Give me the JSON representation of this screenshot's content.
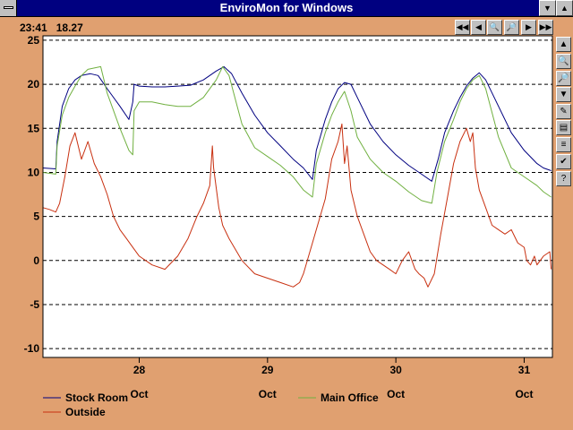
{
  "window": {
    "title": "EnviroMon for Windows",
    "minimize_icon": "down-arrow-icon",
    "maximize_icon": "up-arrow-icon"
  },
  "status": {
    "time": "23:41",
    "value": "18.27"
  },
  "nav_buttons": [
    {
      "name": "rewind-fast-button",
      "icon": "double-left-arrow-icon",
      "glyph": "◀◀"
    },
    {
      "name": "step-back-button",
      "icon": "left-arrow-icon",
      "glyph": "◀"
    },
    {
      "name": "zoom-in-button",
      "icon": "zoom-in-icon",
      "glyph": "🔍"
    },
    {
      "name": "zoom-out-button",
      "icon": "zoom-out-icon",
      "glyph": "🔎"
    },
    {
      "name": "step-forward-button",
      "icon": "right-arrow-icon",
      "glyph": "▶"
    },
    {
      "name": "forward-fast-button",
      "icon": "double-right-arrow-icon",
      "glyph": "▶▶"
    }
  ],
  "side_buttons": [
    {
      "name": "scroll-up-button",
      "icon": "up-arrow-icon",
      "glyph": "▲"
    },
    {
      "name": "zoom-in-vertical-button",
      "icon": "zoom-in-icon",
      "glyph": "🔍"
    },
    {
      "name": "zoom-out-vertical-button",
      "icon": "zoom-out-icon",
      "glyph": "🔎"
    },
    {
      "name": "scroll-down-button",
      "icon": "down-arrow-icon",
      "glyph": "▼"
    },
    {
      "name": "notes-button",
      "icon": "notes-icon",
      "glyph": "✎"
    },
    {
      "name": "save-button",
      "icon": "disk-icon",
      "glyph": "▤"
    },
    {
      "name": "channels-button",
      "icon": "color-bars-icon",
      "glyph": "≡"
    },
    {
      "name": "check-button",
      "icon": "check-icon",
      "glyph": "✔"
    },
    {
      "name": "help-button",
      "icon": "help-icon",
      "glyph": "?"
    }
  ],
  "colors": {
    "background": "#E0A070",
    "plot": "#FFFFFF",
    "stock_room": "#000080",
    "main_office": "#70B040",
    "outside": "#C83010"
  },
  "chart_data": {
    "type": "line",
    "ylim": [
      -11,
      25.5
    ],
    "xlim": [
      27.25,
      31.22
    ],
    "yticks": [
      "25",
      "20",
      "15",
      "10",
      "5",
      "0",
      "-5",
      "-10"
    ],
    "ytick_values": [
      25,
      20,
      15,
      10,
      5,
      0,
      -5,
      -10
    ],
    "xticks": [
      {
        "value": 28,
        "day": "28",
        "month": "Oct"
      },
      {
        "value": 29,
        "day": "29",
        "month": "Oct"
      },
      {
        "value": 30,
        "day": "30",
        "month": "Oct"
      },
      {
        "value": 31,
        "day": "31",
        "month": "Oct"
      }
    ],
    "grid": "horizontal-dashed",
    "legend_position": "bottom-left",
    "series": [
      {
        "name": "Stock Room",
        "color": "#000080",
        "x": [
          27.25,
          27.35,
          27.36,
          27.4,
          27.45,
          27.5,
          27.55,
          27.62,
          27.68,
          27.75,
          27.85,
          27.92,
          27.95,
          27.96,
          28.0,
          28.1,
          28.2,
          28.3,
          28.4,
          28.5,
          28.6,
          28.66,
          28.72,
          28.8,
          28.9,
          29.0,
          29.1,
          29.2,
          29.28,
          29.35,
          29.38,
          29.45,
          29.5,
          29.55,
          29.6,
          29.65,
          29.7,
          29.8,
          29.9,
          30.0,
          30.1,
          30.2,
          30.28,
          30.33,
          30.38,
          30.45,
          30.5,
          30.55,
          30.6,
          30.65,
          30.7,
          30.8,
          30.9,
          31.0,
          31.1,
          31.15,
          31.21
        ],
        "y": [
          10.5,
          10.4,
          13.5,
          17.5,
          19.5,
          20.5,
          21.0,
          21.2,
          21.0,
          19.5,
          17.5,
          16.0,
          18.0,
          20.0,
          19.8,
          19.7,
          19.7,
          19.8,
          19.9,
          20.5,
          21.5,
          22.0,
          21.2,
          19.0,
          16.5,
          14.5,
          13.0,
          11.5,
          10.5,
          9.2,
          12.5,
          16.0,
          18.0,
          19.5,
          20.2,
          20.0,
          18.5,
          15.5,
          13.5,
          12.0,
          10.8,
          9.8,
          9.0,
          11.5,
          14.5,
          17.0,
          18.5,
          19.8,
          20.7,
          21.3,
          20.5,
          17.5,
          14.5,
          12.5,
          11.0,
          10.5,
          10.2
        ]
      },
      {
        "name": "Main Office",
        "color": "#70B040",
        "x": [
          27.25,
          27.35,
          27.36,
          27.4,
          27.45,
          27.5,
          27.55,
          27.6,
          27.7,
          27.75,
          27.85,
          27.92,
          27.95,
          27.96,
          28.0,
          28.1,
          28.2,
          28.3,
          28.4,
          28.5,
          28.6,
          28.65,
          28.7,
          28.8,
          28.9,
          29.0,
          29.1,
          29.2,
          29.28,
          29.35,
          29.38,
          29.45,
          29.5,
          29.55,
          29.6,
          29.65,
          29.7,
          29.8,
          29.9,
          30.0,
          30.1,
          30.2,
          30.28,
          30.32,
          30.38,
          30.45,
          30.5,
          30.55,
          30.6,
          30.65,
          30.7,
          30.8,
          30.9,
          31.0,
          31.1,
          31.15,
          31.21
        ],
        "y": [
          10.0,
          9.8,
          13.0,
          16.5,
          18.5,
          19.8,
          21.0,
          21.7,
          22.0,
          19.0,
          15.0,
          12.5,
          12.0,
          17.0,
          18.0,
          18.0,
          17.7,
          17.5,
          17.5,
          18.5,
          20.5,
          22.0,
          21.0,
          15.5,
          12.8,
          11.8,
          10.8,
          9.5,
          8.0,
          7.2,
          11.0,
          14.5,
          16.5,
          18.0,
          19.2,
          17.0,
          14.0,
          11.5,
          10.0,
          9.0,
          7.8,
          6.8,
          6.5,
          10.0,
          13.5,
          16.0,
          18.0,
          19.5,
          20.5,
          21.0,
          19.5,
          14.0,
          10.5,
          9.5,
          8.5,
          7.8,
          7.2
        ]
      },
      {
        "name": "Outside",
        "color": "#C83010",
        "x": [
          27.25,
          27.3,
          27.35,
          27.38,
          27.42,
          27.46,
          27.5,
          27.55,
          27.6,
          27.65,
          27.7,
          27.75,
          27.8,
          27.85,
          27.9,
          27.95,
          28.0,
          28.1,
          28.2,
          28.3,
          28.38,
          28.45,
          28.5,
          28.55,
          28.57,
          28.58,
          28.62,
          28.65,
          28.7,
          28.8,
          28.9,
          29.0,
          29.1,
          29.2,
          29.25,
          29.28,
          29.35,
          29.45,
          29.5,
          29.55,
          29.58,
          29.6,
          29.62,
          29.65,
          29.7,
          29.75,
          29.8,
          29.85,
          29.9,
          29.95,
          30.0,
          30.05,
          30.1,
          30.15,
          30.18,
          30.22,
          30.25,
          30.3,
          30.35,
          30.4,
          30.45,
          30.5,
          30.55,
          30.58,
          30.6,
          30.62,
          30.65,
          30.7,
          30.75,
          30.8,
          30.85,
          30.9,
          30.95,
          31.0,
          31.02,
          31.05,
          31.08,
          31.1,
          31.15,
          31.2,
          31.21
        ],
        "y": [
          6.0,
          5.8,
          5.5,
          6.5,
          9.5,
          13.0,
          14.5,
          11.5,
          13.5,
          11.0,
          9.5,
          7.5,
          5.0,
          3.5,
          2.5,
          1.5,
          0.5,
          -0.5,
          -1.0,
          0.5,
          2.5,
          5.0,
          6.5,
          8.5,
          13.0,
          10.5,
          6.0,
          4.0,
          2.5,
          0.0,
          -1.5,
          -2.0,
          -2.5,
          -3.0,
          -2.5,
          -1.5,
          2.0,
          7.0,
          11.5,
          13.5,
          15.5,
          11.0,
          13.0,
          8.0,
          5.0,
          3.0,
          1.0,
          0.0,
          -0.5,
          -1.0,
          -1.5,
          0.0,
          1.0,
          -1.0,
          -1.5,
          -2.0,
          -3.0,
          -1.5,
          3.0,
          7.0,
          11.0,
          13.5,
          15.0,
          13.5,
          14.5,
          10.5,
          8.0,
          6.0,
          4.0,
          3.5,
          3.0,
          3.5,
          2.0,
          1.5,
          0.0,
          -0.5,
          0.5,
          -0.5,
          0.5,
          1.0,
          -1.0
        ]
      }
    ]
  }
}
